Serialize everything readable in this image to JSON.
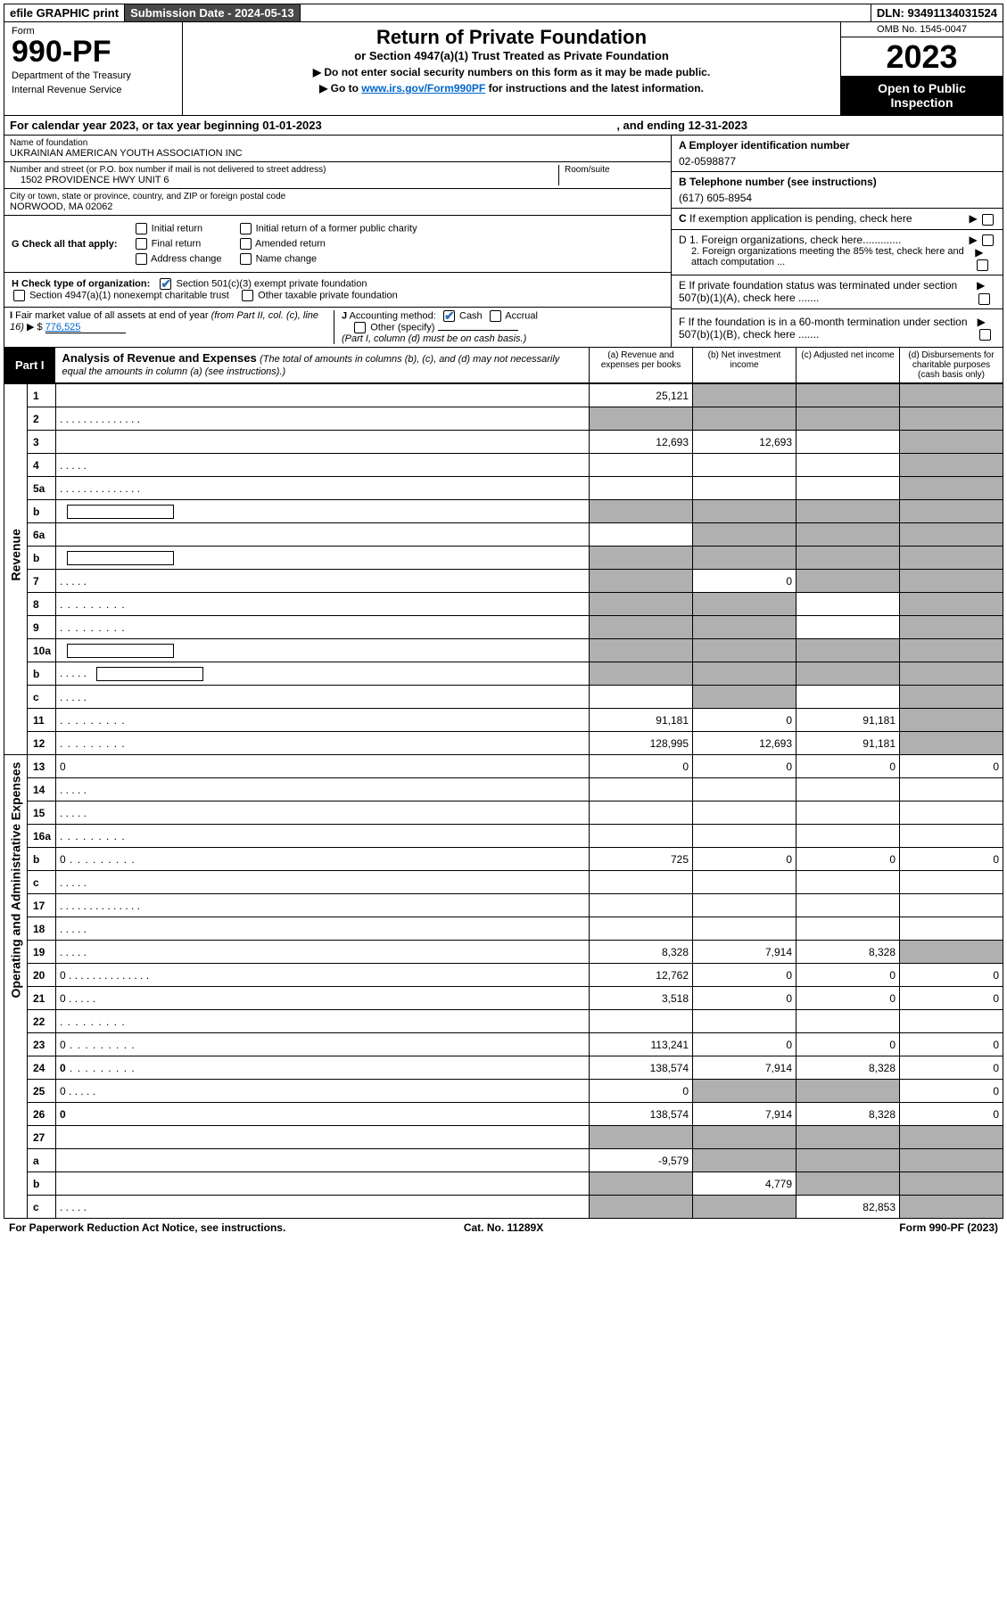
{
  "topbar": {
    "efile": "efile GRAPHIC print",
    "subm_label": "Submission Date - 2024-05-13",
    "dln": "DLN: 93491134031524"
  },
  "header": {
    "form_word": "Form",
    "form_num": "990-PF",
    "dept": "Department of the Treasury",
    "irs": "Internal Revenue Service",
    "title": "Return of Private Foundation",
    "subtitle": "or Section 4947(a)(1) Trust Treated as Private Foundation",
    "instr1": "▶ Do not enter social security numbers on this form as it may be made public.",
    "instr2_pre": "▶ Go to ",
    "instr2_link": "www.irs.gov/Form990PF",
    "instr2_post": " for instructions and the latest information.",
    "omb": "OMB No. 1545-0047",
    "year": "2023",
    "open": "Open to Public Inspection"
  },
  "calyear": {
    "text_a": "For calendar year 2023, or tax year beginning ",
    "begin": "01-01-2023",
    "text_b": ", and ending ",
    "end": "12-31-2023"
  },
  "entity": {
    "name_lbl": "Name of foundation",
    "name_val": "UKRAINIAN AMERICAN YOUTH ASSOCIATION INC",
    "addr_lbl": "Number and street (or P.O. box number if mail is not delivered to street address)",
    "addr_val": "1502 PROVIDENCE HWY UNIT 6",
    "room_lbl": "Room/suite",
    "city_lbl": "City or town, state or province, country, and ZIP or foreign postal code",
    "city_val": "NORWOOD, MA  02062",
    "ein_lbl": "A Employer identification number",
    "ein_val": "02-0598877",
    "tel_lbl": "B Telephone number (see instructions)",
    "tel_val": "(617) 605-8954",
    "c_lbl": "C If exemption application is pending, check here",
    "d1_lbl": "D 1. Foreign organizations, check here.............",
    "d2_lbl": "2. Foreign organizations meeting the 85% test, check here and attach computation ...",
    "e_lbl": "E  If private foundation status was terminated under section 507(b)(1)(A), check here .......",
    "f_lbl": "F  If the foundation is in a 60-month termination under section 507(b)(1)(B), check here .......",
    "g_lbl": "G Check all that apply:",
    "g_initial": "Initial return",
    "g_final": "Final return",
    "g_addr": "Address change",
    "g_initial_former": "Initial return of a former public charity",
    "g_amended": "Amended return",
    "g_name": "Name change",
    "h_lbl": "H Check type of organization:",
    "h_501c3": "Section 501(c)(3) exempt private foundation",
    "h_4947": "Section 4947(a)(1) nonexempt charitable trust",
    "h_other": "Other taxable private foundation",
    "i_lbl": "I Fair market value of all assets at end of year (from Part II, col. (c), line 16) ▶ $",
    "i_val": "776,525",
    "j_lbl": "J Accounting method:",
    "j_cash": "Cash",
    "j_accrual": "Accrual",
    "j_other": "Other (specify)",
    "j_note": "(Part I, column (d) must be on cash basis.)"
  },
  "part1": {
    "label": "Part I",
    "title": "Analysis of Revenue and Expenses",
    "subtitle": "(The total of amounts in columns (b), (c), and (d) may not necessarily equal the amounts in column (a) (see instructions).)",
    "col_a": "(a)   Revenue and expenses per books",
    "col_b": "(b)   Net investment income",
    "col_c": "(c)   Adjusted net income",
    "col_d": "(d)   Disbursements for charitable purposes (cash basis only)",
    "sidebar_rev": "Revenue",
    "sidebar_exp": "Operating and Administrative Expenses",
    "rows": [
      {
        "n": "1",
        "d": "",
        "a": "25,121",
        "b": "",
        "c": "",
        "sh": [
          "b",
          "c",
          "d"
        ]
      },
      {
        "n": "2",
        "d": "",
        "a": "",
        "b": "",
        "c": "",
        "sh": [
          "a",
          "b",
          "c",
          "d"
        ],
        "dots": "long"
      },
      {
        "n": "3",
        "d": "",
        "a": "12,693",
        "b": "12,693",
        "c": "",
        "sh": [
          "d"
        ]
      },
      {
        "n": "4",
        "d": "",
        "a": "",
        "b": "",
        "c": "",
        "sh": [
          "d"
        ],
        "dots": "short"
      },
      {
        "n": "5a",
        "d": "",
        "a": "",
        "b": "",
        "c": "",
        "sh": [
          "d"
        ],
        "dots": "long"
      },
      {
        "n": "b",
        "d": "",
        "a": "",
        "b": "",
        "c": "",
        "sh": [
          "a",
          "b",
          "c",
          "d"
        ],
        "box": true
      },
      {
        "n": "6a",
        "d": "",
        "a": "",
        "b": "",
        "c": "",
        "sh": [
          "b",
          "c",
          "d"
        ]
      },
      {
        "n": "b",
        "d": "",
        "a": "",
        "b": "",
        "c": "",
        "sh": [
          "a",
          "b",
          "c",
          "d"
        ],
        "box": true
      },
      {
        "n": "7",
        "d": "",
        "a": "",
        "b": "0",
        "c": "",
        "sh": [
          "a",
          "c",
          "d"
        ],
        "dots": "short"
      },
      {
        "n": "8",
        "d": "",
        "a": "",
        "b": "",
        "c": "",
        "sh": [
          "a",
          "b",
          "d"
        ],
        "dots": "mid"
      },
      {
        "n": "9",
        "d": "",
        "a": "",
        "b": "",
        "c": "",
        "sh": [
          "a",
          "b",
          "d"
        ],
        "dots": "mid"
      },
      {
        "n": "10a",
        "d": "",
        "a": "",
        "b": "",
        "c": "",
        "sh": [
          "a",
          "b",
          "c",
          "d"
        ],
        "box": true
      },
      {
        "n": "b",
        "d": "",
        "a": "",
        "b": "",
        "c": "",
        "sh": [
          "a",
          "b",
          "c",
          "d"
        ],
        "box": true,
        "dots": "short"
      },
      {
        "n": "c",
        "d": "",
        "a": "",
        "b": "",
        "c": "",
        "sh": [
          "b",
          "d"
        ],
        "dots": "short"
      },
      {
        "n": "11",
        "d": "",
        "a": "91,181",
        "b": "0",
        "c": "91,181",
        "sh": [
          "d"
        ],
        "dots": "mid"
      },
      {
        "n": "12",
        "d": "",
        "a": "128,995",
        "b": "12,693",
        "c": "91,181",
        "sh": [
          "d"
        ],
        "bold": true,
        "dots": "mid"
      },
      {
        "n": "13",
        "d": "0",
        "a": "0",
        "b": "0",
        "c": "0"
      },
      {
        "n": "14",
        "d": "",
        "a": "",
        "b": "",
        "c": "",
        "dots": "short"
      },
      {
        "n": "15",
        "d": "",
        "a": "",
        "b": "",
        "c": "",
        "dots": "short"
      },
      {
        "n": "16a",
        "d": "",
        "a": "",
        "b": "",
        "c": "",
        "dots": "mid"
      },
      {
        "n": "b",
        "d": "0",
        "a": "725",
        "b": "0",
        "c": "0",
        "dots": "mid"
      },
      {
        "n": "c",
        "d": "",
        "a": "",
        "b": "",
        "c": "",
        "dots": "short"
      },
      {
        "n": "17",
        "d": "",
        "a": "",
        "b": "",
        "c": "",
        "dots": "long"
      },
      {
        "n": "18",
        "d": "",
        "a": "",
        "b": "",
        "c": "",
        "dots": "short"
      },
      {
        "n": "19",
        "d": "",
        "a": "8,328",
        "b": "7,914",
        "c": "8,328",
        "sh": [
          "d"
        ],
        "dots": "short"
      },
      {
        "n": "20",
        "d": "0",
        "a": "12,762",
        "b": "0",
        "c": "0",
        "dots": "long"
      },
      {
        "n": "21",
        "d": "0",
        "a": "3,518",
        "b": "0",
        "c": "0",
        "dots": "short"
      },
      {
        "n": "22",
        "d": "",
        "a": "",
        "b": "",
        "c": "",
        "dots": "mid"
      },
      {
        "n": "23",
        "d": "0",
        "a": "113,241",
        "b": "0",
        "c": "0",
        "dots": "mid"
      },
      {
        "n": "24",
        "d": "0",
        "a": "138,574",
        "b": "7,914",
        "c": "8,328",
        "bold": true,
        "dots": "mid"
      },
      {
        "n": "25",
        "d": "0",
        "a": "0",
        "b": "",
        "c": "",
        "sh": [
          "b",
          "c"
        ],
        "dots": "short"
      },
      {
        "n": "26",
        "d": "0",
        "a": "138,574",
        "b": "7,914",
        "c": "8,328",
        "bold": true
      },
      {
        "n": "27",
        "d": "",
        "a": "",
        "b": "",
        "c": "",
        "sh": [
          "a",
          "b",
          "c",
          "d"
        ]
      },
      {
        "n": "a",
        "d": "",
        "a": "-9,579",
        "b": "",
        "c": "",
        "sh": [
          "b",
          "c",
          "d"
        ],
        "bold": true
      },
      {
        "n": "b",
        "d": "",
        "a": "",
        "b": "4,779",
        "c": "",
        "sh": [
          "a",
          "c",
          "d"
        ],
        "bold": true
      },
      {
        "n": "c",
        "d": "",
        "a": "",
        "b": "",
        "c": "82,853",
        "sh": [
          "a",
          "b",
          "d"
        ],
        "bold": true,
        "dots": "short"
      }
    ]
  },
  "footer": {
    "left": "For Paperwork Reduction Act Notice, see instructions.",
    "center": "Cat. No. 11289X",
    "right": "Form 990-PF (2023)"
  }
}
